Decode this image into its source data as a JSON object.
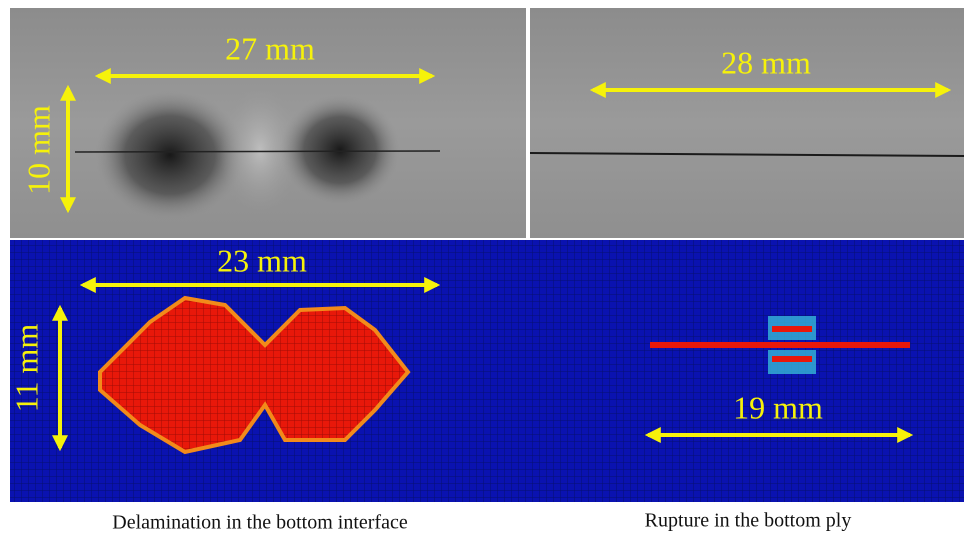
{
  "top_left": {
    "horizontal": "27 mm",
    "vertical": "10 mm"
  },
  "top_right": {
    "horizontal": "28 mm"
  },
  "bottom_left": {
    "horizontal": "23 mm",
    "vertical": "11 mm"
  },
  "bottom_right": {
    "horizontal": "19 mm"
  },
  "captions": [
    "Delamination in the bottom interface",
    "Rupture in the bottom ply"
  ]
}
